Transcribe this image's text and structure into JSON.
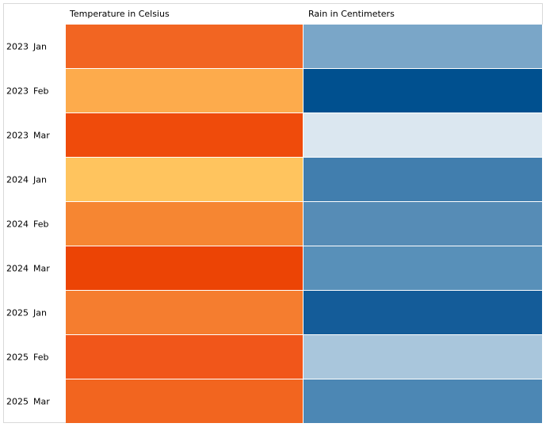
{
  "chart_data": {
    "type": "heatmap",
    "columns": [
      "Temperature in Celsius",
      "Rain in Centimeters"
    ],
    "rows": [
      {
        "year": "2023",
        "month": "Jan"
      },
      {
        "year": "2023",
        "month": "Feb"
      },
      {
        "year": "2023",
        "month": "Mar"
      },
      {
        "year": "2024",
        "month": "Jan"
      },
      {
        "year": "2024",
        "month": "Feb"
      },
      {
        "year": "2024",
        "month": "Mar"
      },
      {
        "year": "2025",
        "month": "Jan"
      },
      {
        "year": "2025",
        "month": "Feb"
      },
      {
        "year": "2025",
        "month": "Mar"
      }
    ],
    "colors": [
      [
        "#f26522",
        "#7aa6c8"
      ],
      [
        "#fdab4c",
        "#00508f"
      ],
      [
        "#ef4b0b",
        "#dbe7f0"
      ],
      [
        "#ffc45e",
        "#417eae"
      ],
      [
        "#f68632",
        "#568cb6"
      ],
      [
        "#ec4405",
        "#5890b9"
      ],
      [
        "#f57d2f",
        "#145c99"
      ],
      [
        "#f1561a",
        "#a9c6dc"
      ],
      [
        "#f2651f",
        "#4c87b4"
      ]
    ]
  }
}
